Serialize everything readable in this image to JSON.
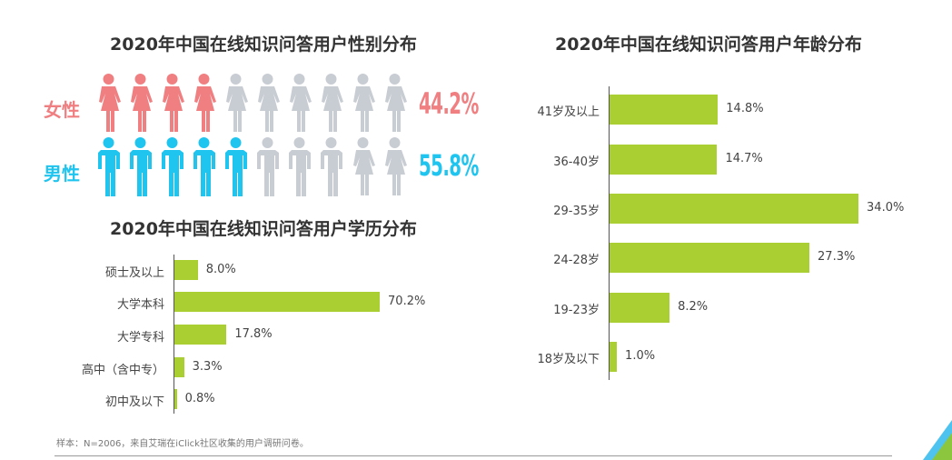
{
  "colors": {
    "female": "#f07f82",
    "male": "#1fc4ef",
    "inactive": "#c8ccd3",
    "bar": "#a9cf32"
  },
  "gender": {
    "title": "2020年中国在线知识问答用户性别分布",
    "female": {
      "label": "女性",
      "value": "44.2%",
      "filled_icons": 4,
      "total_icons": 10
    },
    "male": {
      "label": "男性",
      "value": "55.8%",
      "filled_icons": 5,
      "total_icons": 10
    }
  },
  "chart_data": [
    {
      "type": "bar",
      "orientation": "horizontal",
      "title": "2020年中国在线知识问答用户学历分布",
      "categories": [
        "硕士及以上",
        "大学本科",
        "大学专科",
        "高中（含中专）",
        "初中及以下"
      ],
      "values": [
        8.0,
        70.2,
        17.8,
        3.3,
        0.8
      ],
      "labels": [
        "8.0%",
        "70.2%",
        "17.8%",
        "3.3%",
        "0.8%"
      ],
      "unit": "%"
    },
    {
      "type": "bar",
      "orientation": "horizontal",
      "title": "2020年中国在线知识问答用户年龄分布",
      "categories": [
        "41岁及以上",
        "36-40岁",
        "29-35岁",
        "24-28岁",
        "19-23岁",
        "18岁及以下"
      ],
      "values": [
        14.8,
        14.7,
        34.0,
        27.3,
        8.2,
        1.0
      ],
      "labels": [
        "14.8%",
        "14.7%",
        "34.0%",
        "27.3%",
        "8.2%",
        "1.0%"
      ],
      "unit": "%"
    }
  ],
  "footnote": "样本：N=2006，来自艾瑞在iClick社区收集的用户调研问卷。"
}
